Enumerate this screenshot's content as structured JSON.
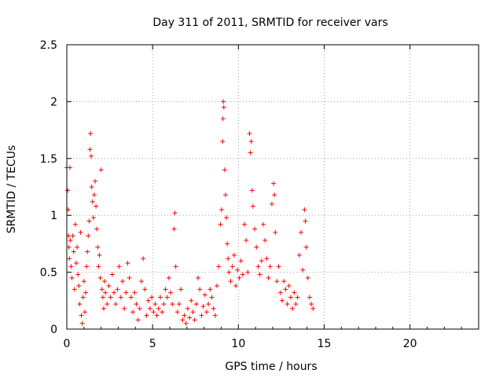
{
  "chart_data": {
    "type": "scatter",
    "title": "Day 311 of 2011, SRMTID for receiver vars",
    "xlabel": "GPS time / hours",
    "ylabel": "SRMTID / TECUs",
    "xlim": [
      0,
      24
    ],
    "ylim": [
      0,
      2.5
    ],
    "xticks": [
      "0",
      "5",
      "10",
      "15",
      "20"
    ],
    "yticks": [
      "0",
      "0.5",
      "1",
      "1.5",
      "2",
      "2.5"
    ],
    "grid": true,
    "marker": "plus",
    "color": "#ff0000",
    "series": [
      {
        "values": [
          [
            0.0,
            1.42
          ],
          [
            0.05,
            1.22
          ],
          [
            0.08,
            1.05
          ],
          [
            0.1,
            0.82
          ],
          [
            0.12,
            0.72
          ],
          [
            0.15,
            0.62
          ],
          [
            0.18,
            1.42
          ],
          [
            0.2,
            0.78
          ],
          [
            0.25,
            0.55
          ],
          [
            0.3,
            0.45
          ],
          [
            0.35,
            0.82
          ],
          [
            0.4,
            0.68
          ],
          [
            0.45,
            0.35
          ],
          [
            0.5,
            0.92
          ],
          [
            0.55,
            0.58
          ],
          [
            0.6,
            0.72
          ],
          [
            0.65,
            0.48
          ],
          [
            0.7,
            0.38
          ],
          [
            0.75,
            0.22
          ],
          [
            0.8,
            0.85
          ],
          [
            0.85,
            0.12
          ],
          [
            0.9,
            0.05
          ],
          [
            0.95,
            0.28
          ],
          [
            1.0,
            0.42
          ],
          [
            1.05,
            0.15
          ],
          [
            1.1,
            0.32
          ],
          [
            1.15,
            0.55
          ],
          [
            1.2,
            0.68
          ],
          [
            1.25,
            0.82
          ],
          [
            1.3,
            0.95
          ],
          [
            1.35,
            1.58
          ],
          [
            1.38,
            1.72
          ],
          [
            1.42,
            1.52
          ],
          [
            1.45,
            1.25
          ],
          [
            1.5,
            1.12
          ],
          [
            1.55,
            0.98
          ],
          [
            1.6,
            1.18
          ],
          [
            1.65,
            1.3
          ],
          [
            1.7,
            1.08
          ],
          [
            1.75,
            0.88
          ],
          [
            1.8,
            0.72
          ],
          [
            1.85,
            0.55
          ],
          [
            1.9,
            0.65
          ],
          [
            1.95,
            0.45
          ],
          [
            2.0,
            1.4
          ],
          [
            2.05,
            0.35
          ],
          [
            2.1,
            0.28
          ],
          [
            2.15,
            0.18
          ],
          [
            2.2,
            0.42
          ],
          [
            2.25,
            0.32
          ],
          [
            2.35,
            0.22
          ],
          [
            2.45,
            0.38
          ],
          [
            2.55,
            0.28
          ],
          [
            2.65,
            0.48
          ],
          [
            2.75,
            0.32
          ],
          [
            2.85,
            0.22
          ],
          [
            2.95,
            0.35
          ],
          [
            3.05,
            0.55
          ],
          [
            3.15,
            0.28
          ],
          [
            3.25,
            0.42
          ],
          [
            3.35,
            0.18
          ],
          [
            3.45,
            0.32
          ],
          [
            3.55,
            0.58
          ],
          [
            3.65,
            0.45
          ],
          [
            3.75,
            0.28
          ],
          [
            3.85,
            0.15
          ],
          [
            3.95,
            0.32
          ],
          [
            4.05,
            0.22
          ],
          [
            4.15,
            0.08
          ],
          [
            4.25,
            0.18
          ],
          [
            4.35,
            0.42
          ],
          [
            4.45,
            0.62
          ],
          [
            4.55,
            0.35
          ],
          [
            4.65,
            0.12
          ],
          [
            4.75,
            0.25
          ],
          [
            4.85,
            0.18
          ],
          [
            4.95,
            0.28
          ],
          [
            5.05,
            0.15
          ],
          [
            5.15,
            0.22
          ],
          [
            5.25,
            0.12
          ],
          [
            5.35,
            0.18
          ],
          [
            5.45,
            0.28
          ],
          [
            5.55,
            0.15
          ],
          [
            5.65,
            0.22
          ],
          [
            5.75,
            0.35
          ],
          [
            5.85,
            0.28
          ],
          [
            5.95,
            0.45
          ],
          [
            6.05,
            0.32
          ],
          [
            6.15,
            0.22
          ],
          [
            6.25,
            0.88
          ],
          [
            6.3,
            1.02
          ],
          [
            6.35,
            0.55
          ],
          [
            6.45,
            0.15
          ],
          [
            6.55,
            0.22
          ],
          [
            6.65,
            0.35
          ],
          [
            6.75,
            0.08
          ],
          [
            6.85,
            0.12
          ],
          [
            6.95,
            0.05
          ],
          [
            7.05,
            0.18
          ],
          [
            7.15,
            0.1
          ],
          [
            7.25,
            0.25
          ],
          [
            7.35,
            0.15
          ],
          [
            7.45,
            0.08
          ],
          [
            7.55,
            0.22
          ],
          [
            7.65,
            0.45
          ],
          [
            7.75,
            0.35
          ],
          [
            7.85,
            0.12
          ],
          [
            7.95,
            0.2
          ],
          [
            8.05,
            0.3
          ],
          [
            8.15,
            0.15
          ],
          [
            8.25,
            0.22
          ],
          [
            8.35,
            0.35
          ],
          [
            8.45,
            0.28
          ],
          [
            8.55,
            0.18
          ],
          [
            8.65,
            0.12
          ],
          [
            8.75,
            0.38
          ],
          [
            8.85,
            0.55
          ],
          [
            8.95,
            0.92
          ],
          [
            9.02,
            1.05
          ],
          [
            9.08,
            1.65
          ],
          [
            9.1,
            1.85
          ],
          [
            9.12,
            2.0
          ],
          [
            9.15,
            1.95
          ],
          [
            9.2,
            1.4
          ],
          [
            9.25,
            1.18
          ],
          [
            9.3,
            0.98
          ],
          [
            9.35,
            0.75
          ],
          [
            9.4,
            0.62
          ],
          [
            9.45,
            0.5
          ],
          [
            9.55,
            0.42
          ],
          [
            9.65,
            0.55
          ],
          [
            9.75,
            0.65
          ],
          [
            9.85,
            0.38
          ],
          [
            9.95,
            0.52
          ],
          [
            10.05,
            0.45
          ],
          [
            10.15,
            0.6
          ],
          [
            10.25,
            0.48
          ],
          [
            10.35,
            0.92
          ],
          [
            10.45,
            0.78
          ],
          [
            10.55,
            0.5
          ],
          [
            10.65,
            1.72
          ],
          [
            10.7,
            1.55
          ],
          [
            10.75,
            1.65
          ],
          [
            10.8,
            1.22
          ],
          [
            10.85,
            1.08
          ],
          [
            10.95,
            0.88
          ],
          [
            11.05,
            0.72
          ],
          [
            11.15,
            0.55
          ],
          [
            11.25,
            0.48
          ],
          [
            11.35,
            0.6
          ],
          [
            11.45,
            0.92
          ],
          [
            11.55,
            0.78
          ],
          [
            11.65,
            0.62
          ],
          [
            11.75,
            0.45
          ],
          [
            11.85,
            0.55
          ],
          [
            11.95,
            1.1
          ],
          [
            12.05,
            1.28
          ],
          [
            12.1,
            1.18
          ],
          [
            12.15,
            0.85
          ],
          [
            12.25,
            0.42
          ],
          [
            12.35,
            0.55
          ],
          [
            12.45,
            0.32
          ],
          [
            12.55,
            0.25
          ],
          [
            12.65,
            0.42
          ],
          [
            12.75,
            0.35
          ],
          [
            12.85,
            0.22
          ],
          [
            12.95,
            0.38
          ],
          [
            13.05,
            0.28
          ],
          [
            13.15,
            0.18
          ],
          [
            13.25,
            0.32
          ],
          [
            13.35,
            0.22
          ],
          [
            13.45,
            0.28
          ],
          [
            13.55,
            0.65
          ],
          [
            13.65,
            0.85
          ],
          [
            13.75,
            0.52
          ],
          [
            13.85,
            1.05
          ],
          [
            13.9,
            0.95
          ],
          [
            13.95,
            0.72
          ],
          [
            14.05,
            0.45
          ],
          [
            14.15,
            0.28
          ],
          [
            14.25,
            0.22
          ],
          [
            14.35,
            0.18
          ]
        ]
      }
    ]
  }
}
